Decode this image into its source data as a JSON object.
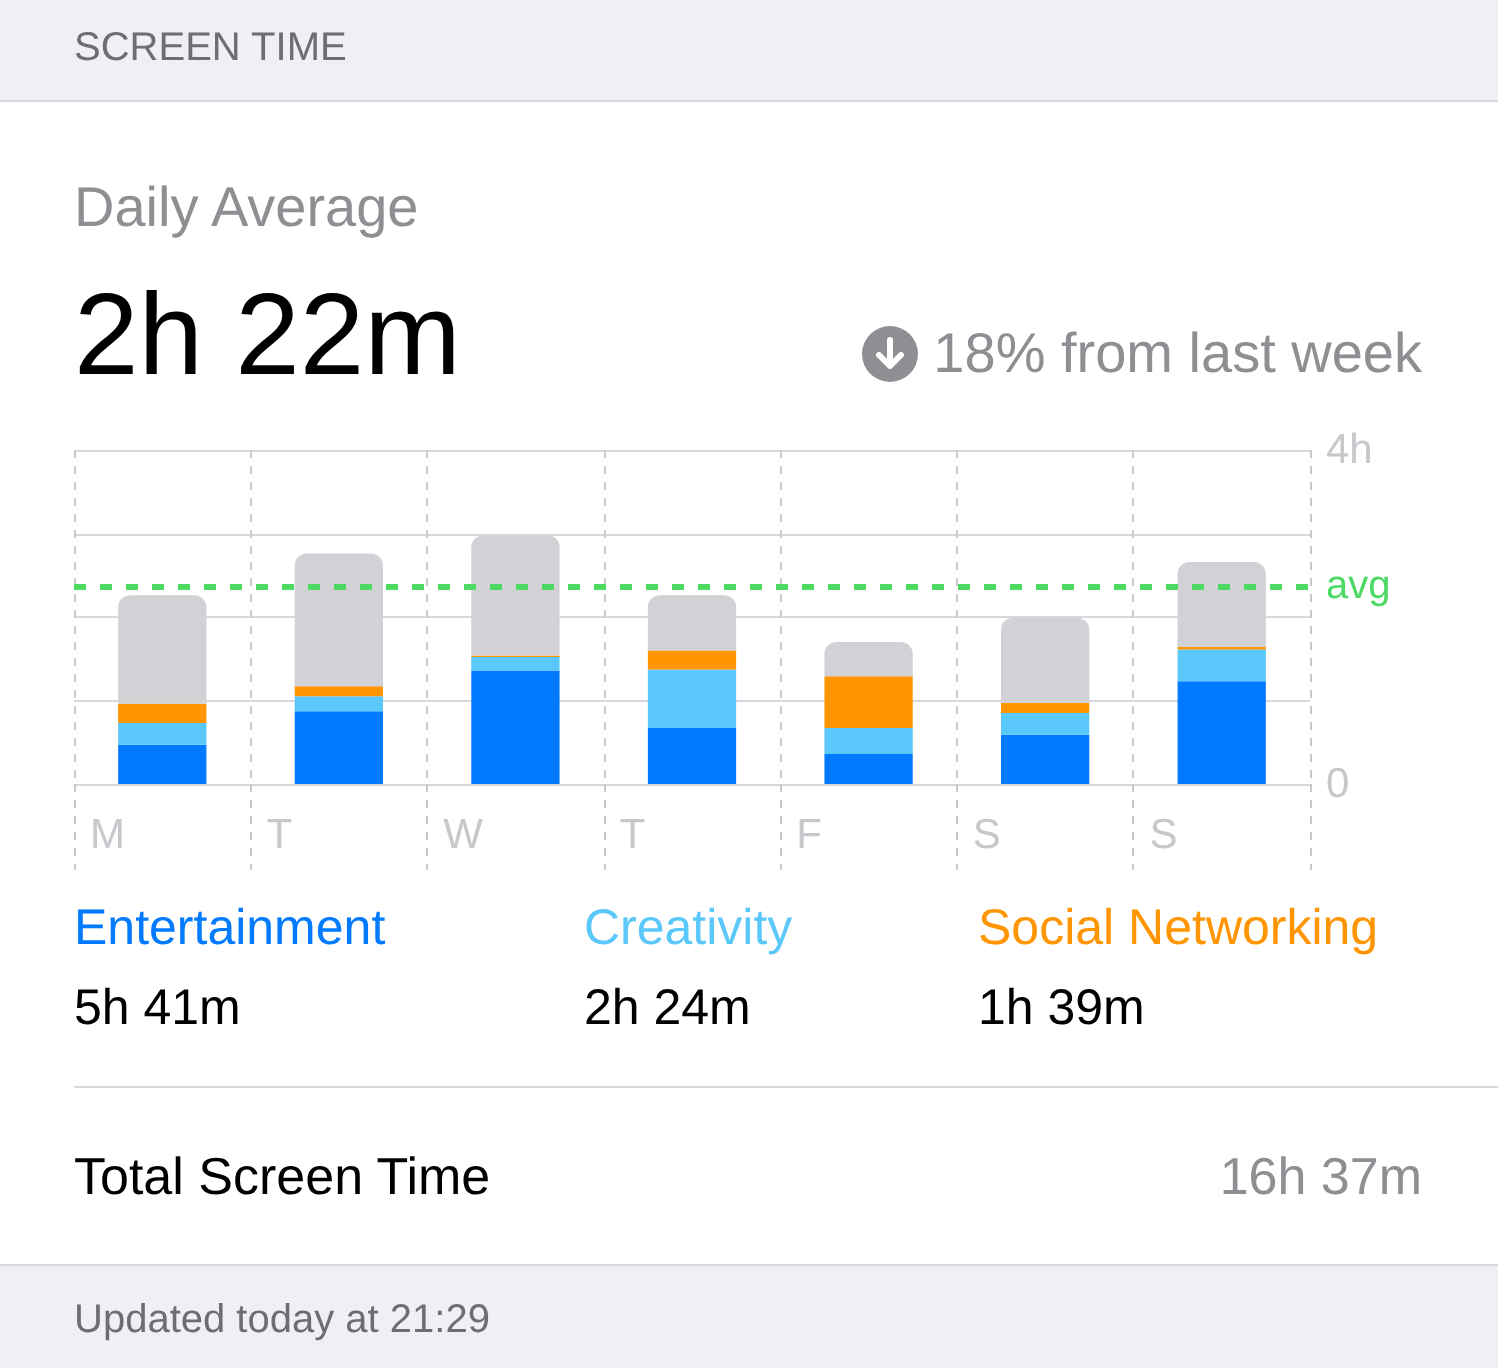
{
  "chart_data": {
    "type": "bar",
    "title": "SCREEN TIME",
    "subtitle": "Daily Average",
    "categories": [
      "M",
      "T",
      "W",
      "T",
      "F",
      "S",
      "S"
    ],
    "stacked": true,
    "series": [
      {
        "name": "Entertainment",
        "color": "#007aff",
        "values": [
          0.47,
          0.87,
          1.36,
          0.67,
          0.36,
          0.59,
          1.23
        ]
      },
      {
        "name": "Creativity",
        "color": "#5ac8fa",
        "values": [
          0.26,
          0.18,
          0.16,
          0.7,
          0.31,
          0.26,
          0.38
        ]
      },
      {
        "name": "Social Networking",
        "color": "#ff9500",
        "values": [
          0.23,
          0.12,
          0.02,
          0.23,
          0.62,
          0.12,
          0.03
        ]
      },
      {
        "color": "#d1d1d6",
        "values": [
          1.3,
          1.59,
          1.44,
          0.66,
          0.41,
          1.02,
          1.02
        ]
      }
    ],
    "ylim": [
      0,
      4
    ],
    "yticks": [
      0,
      {
        "value": 1,
        "label": null
      },
      {
        "value": 2,
        "label": null
      },
      {
        "value": 3,
        "label": null
      },
      {
        "value": 4,
        "label": "4h"
      }
    ],
    "ref_lines": [
      {
        "axis": "y",
        "value": 2.37,
        "label": "avg",
        "color": "#4cd964",
        "line_style": "dashed"
      }
    ],
    "grid": true,
    "legend": "bottom",
    "annotations": [
      "2h 22m",
      "18% from last week",
      "5h 41m",
      "2h 24m",
      "1h 39m",
      "Total Screen Time",
      "16h 37m",
      "Updated today at 21:29"
    ]
  }
}
